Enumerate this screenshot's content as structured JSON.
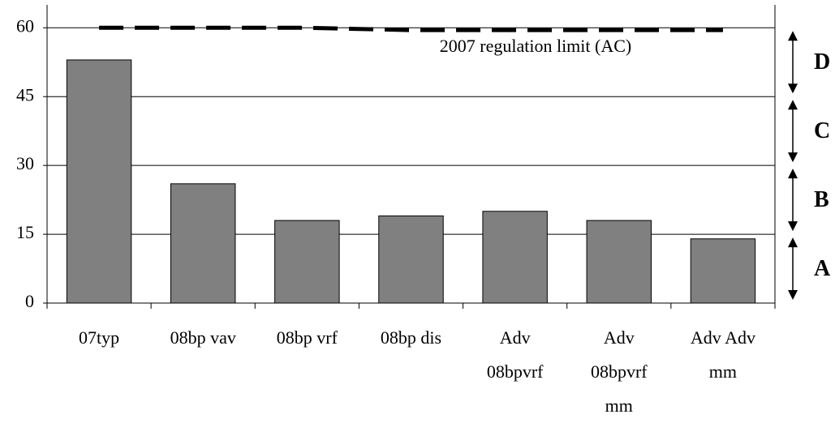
{
  "chart_data": {
    "type": "bar",
    "categories": [
      "07typ",
      "08bp vav",
      "08bp vrf",
      "08bp dis",
      "Adv 08bpvrf",
      "Adv 08bpvrf mm",
      "Adv Adv mm"
    ],
    "values": [
      53,
      26,
      18,
      19,
      20,
      18,
      14
    ],
    "color": "#808080",
    "ylim": [
      0,
      65
    ],
    "yticks": [
      0,
      15,
      30,
      45,
      60
    ],
    "grid": true,
    "limit_line": {
      "name": "2007 regulation limit (AC)",
      "values": [
        60,
        60,
        60,
        59.5,
        59.5,
        59.5,
        59.5
      ],
      "color": "#000000"
    },
    "zone_labels": [
      "A",
      "B",
      "C",
      "D"
    ]
  }
}
